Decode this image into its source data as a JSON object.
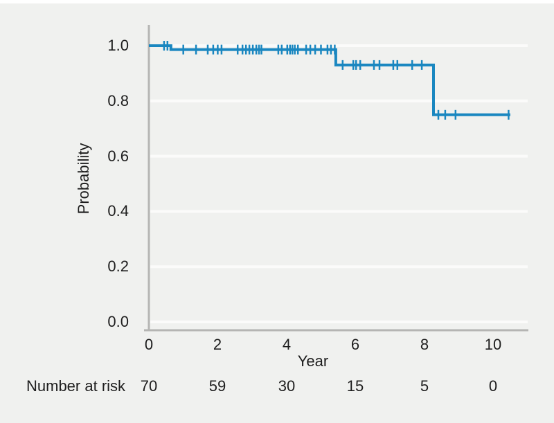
{
  "figure": {
    "background_color": "#f0f1ef",
    "top_border_color": "#ffffff"
  },
  "chart_data": {
    "type": "line",
    "subtype": "kaplan-meier-step-curve",
    "title": "",
    "xlabel": "Year",
    "ylabel": "Probability",
    "xlim": [
      0,
      11
    ],
    "ylim": [
      0.0,
      1.0
    ],
    "x_ticks": [
      "0",
      "2",
      "4",
      "6",
      "8",
      "10"
    ],
    "x_tick_values": [
      0,
      2,
      4,
      6,
      8,
      10
    ],
    "y_ticks": [
      "1.0",
      "0.8",
      "0.6",
      "0.4",
      "0.2",
      "0.0"
    ],
    "y_tick_values": [
      1.0,
      0.8,
      0.6,
      0.4,
      0.2,
      0.0
    ],
    "grid": true,
    "legend": "none",
    "line_color": "#1a87c0",
    "axis_color": "#b5b5b3",
    "grid_color": "#fbfbfa",
    "series": [
      {
        "name": "survival-probability",
        "steps": [
          [
            0,
            1.0
          ],
          [
            0.64,
            1.0
          ],
          [
            0.64,
            0.986
          ],
          [
            5.43,
            0.986
          ],
          [
            5.43,
            0.93
          ],
          [
            8.27,
            0.93
          ],
          [
            8.27,
            0.75
          ],
          [
            10.5,
            0.75
          ]
        ],
        "censor_marks": [
          [
            0.44,
            1.0
          ],
          [
            0.54,
            1.0
          ],
          [
            1.0,
            0.986
          ],
          [
            1.37,
            0.986
          ],
          [
            1.71,
            0.986
          ],
          [
            1.87,
            0.986
          ],
          [
            2.0,
            0.986
          ],
          [
            2.11,
            0.986
          ],
          [
            2.58,
            0.986
          ],
          [
            2.72,
            0.986
          ],
          [
            2.82,
            0.986
          ],
          [
            2.92,
            0.986
          ],
          [
            3.02,
            0.986
          ],
          [
            3.12,
            0.986
          ],
          [
            3.2,
            0.986
          ],
          [
            3.27,
            0.986
          ],
          [
            3.76,
            0.986
          ],
          [
            3.86,
            0.986
          ],
          [
            4.02,
            0.986
          ],
          [
            4.1,
            0.986
          ],
          [
            4.17,
            0.986
          ],
          [
            4.24,
            0.986
          ],
          [
            4.33,
            0.986
          ],
          [
            4.57,
            0.986
          ],
          [
            4.69,
            0.986
          ],
          [
            4.83,
            0.986
          ],
          [
            5.0,
            0.986
          ],
          [
            5.19,
            0.986
          ],
          [
            5.29,
            0.986
          ],
          [
            5.4,
            0.986
          ],
          [
            5.63,
            0.93
          ],
          [
            5.94,
            0.93
          ],
          [
            6.02,
            0.93
          ],
          [
            6.14,
            0.93
          ],
          [
            6.54,
            0.93
          ],
          [
            6.7,
            0.93
          ],
          [
            7.1,
            0.93
          ],
          [
            7.22,
            0.93
          ],
          [
            7.65,
            0.93
          ],
          [
            7.93,
            0.93
          ],
          [
            8.41,
            0.75
          ],
          [
            8.61,
            0.75
          ],
          [
            8.91,
            0.75
          ],
          [
            10.45,
            0.75
          ]
        ]
      }
    ],
    "number_at_risk": {
      "label": "Number at risk",
      "times": [
        0,
        2,
        4,
        6,
        8,
        10
      ],
      "counts": [
        "70",
        "59",
        "30",
        "15",
        "5",
        "0"
      ]
    }
  }
}
